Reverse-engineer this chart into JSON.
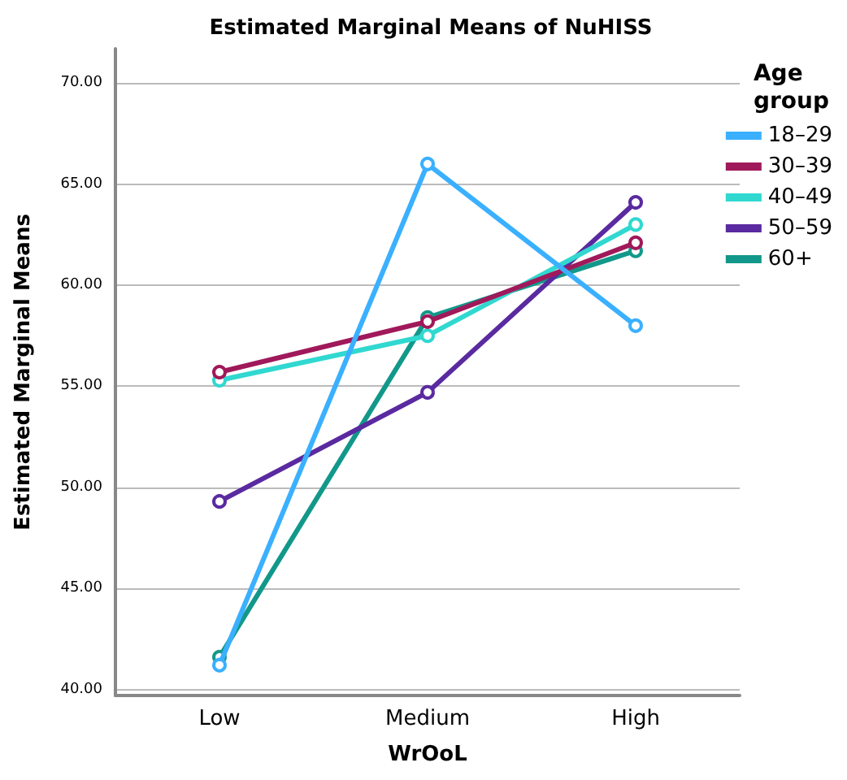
{
  "chart_data": {
    "type": "line",
    "title": "Estimated Marginal Means of NuHISS",
    "xlabel": "WrOoL",
    "ylabel": "Estimated Marginal Means",
    "legend_title": "Age\ngroup",
    "categories": [
      "Low",
      "Medium",
      "High"
    ],
    "series": [
      {
        "name": "18–29",
        "color": "#3ab0ff",
        "values": [
          41.2,
          66.0,
          58.0
        ]
      },
      {
        "name": "30–39",
        "color": "#a0195a",
        "values": [
          55.7,
          58.2,
          62.1
        ]
      },
      {
        "name": "40–49",
        "color": "#30d8d0",
        "values": [
          55.3,
          57.5,
          63.0
        ]
      },
      {
        "name": "50–59",
        "color": "#5a2aa0",
        "values": [
          49.3,
          54.7,
          64.1
        ]
      },
      {
        "name": "60+",
        "color": "#12988a",
        "values": [
          41.6,
          58.4,
          61.7
        ]
      }
    ],
    "ylim": [
      39.7,
      71.7
    ],
    "yticks": [
      {
        "value": 40,
        "label": "40.00"
      },
      {
        "value": 45,
        "label": "45.00"
      },
      {
        "value": 50,
        "label": "50.00"
      },
      {
        "value": 55,
        "label": "55.00"
      },
      {
        "value": 60,
        "label": "60.00"
      },
      {
        "value": 65,
        "label": "65.00"
      },
      {
        "value": 70,
        "label": "70.00"
      }
    ],
    "grid": "y",
    "legend": "top right",
    "marker": "circle",
    "line_style": "solid"
  }
}
